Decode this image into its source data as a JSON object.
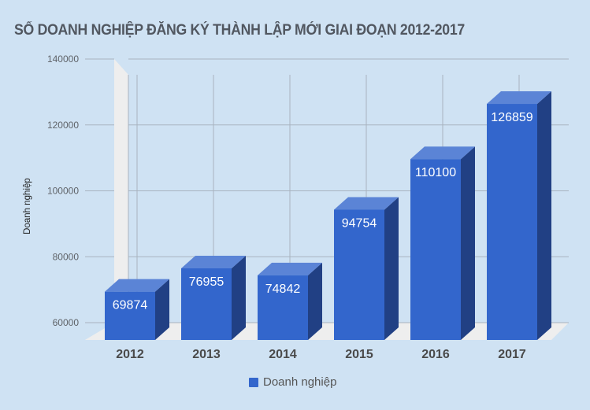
{
  "title": "SỐ DOANH NGHIỆP ĐĂNG KÝ THÀNH LẬP MỚI GIAI ĐOẠN 2012-2017",
  "legend": {
    "label": "Doanh nghiệp",
    "color": "#3366cc"
  },
  "colors": {
    "front": "#3366cc",
    "side": "#214084",
    "top": "#5b84d6",
    "wall": "#eeeeee",
    "grid": "#a8b3bf",
    "background": "#cfe2f3"
  },
  "chart_data": {
    "type": "bar",
    "title": "SỐ DOANH NGHIỆP ĐĂNG KÝ THÀNH LẬP MỚI GIAI ĐOẠN 2012-2017",
    "categories": [
      "2012",
      "2013",
      "2014",
      "2015",
      "2016",
      "2017"
    ],
    "series": [
      {
        "name": "Doanh nghiệp",
        "values": [
          69874,
          76955,
          74842,
          94754,
          110100,
          126859
        ]
      }
    ],
    "xlabel": "",
    "ylabel": "Doanh nghiệp",
    "ylim": [
      60000,
      140000
    ],
    "yticks": [
      60000,
      80000,
      100000,
      120000,
      140000
    ],
    "grid": true,
    "legend_position": "bottom",
    "style": "3d"
  }
}
